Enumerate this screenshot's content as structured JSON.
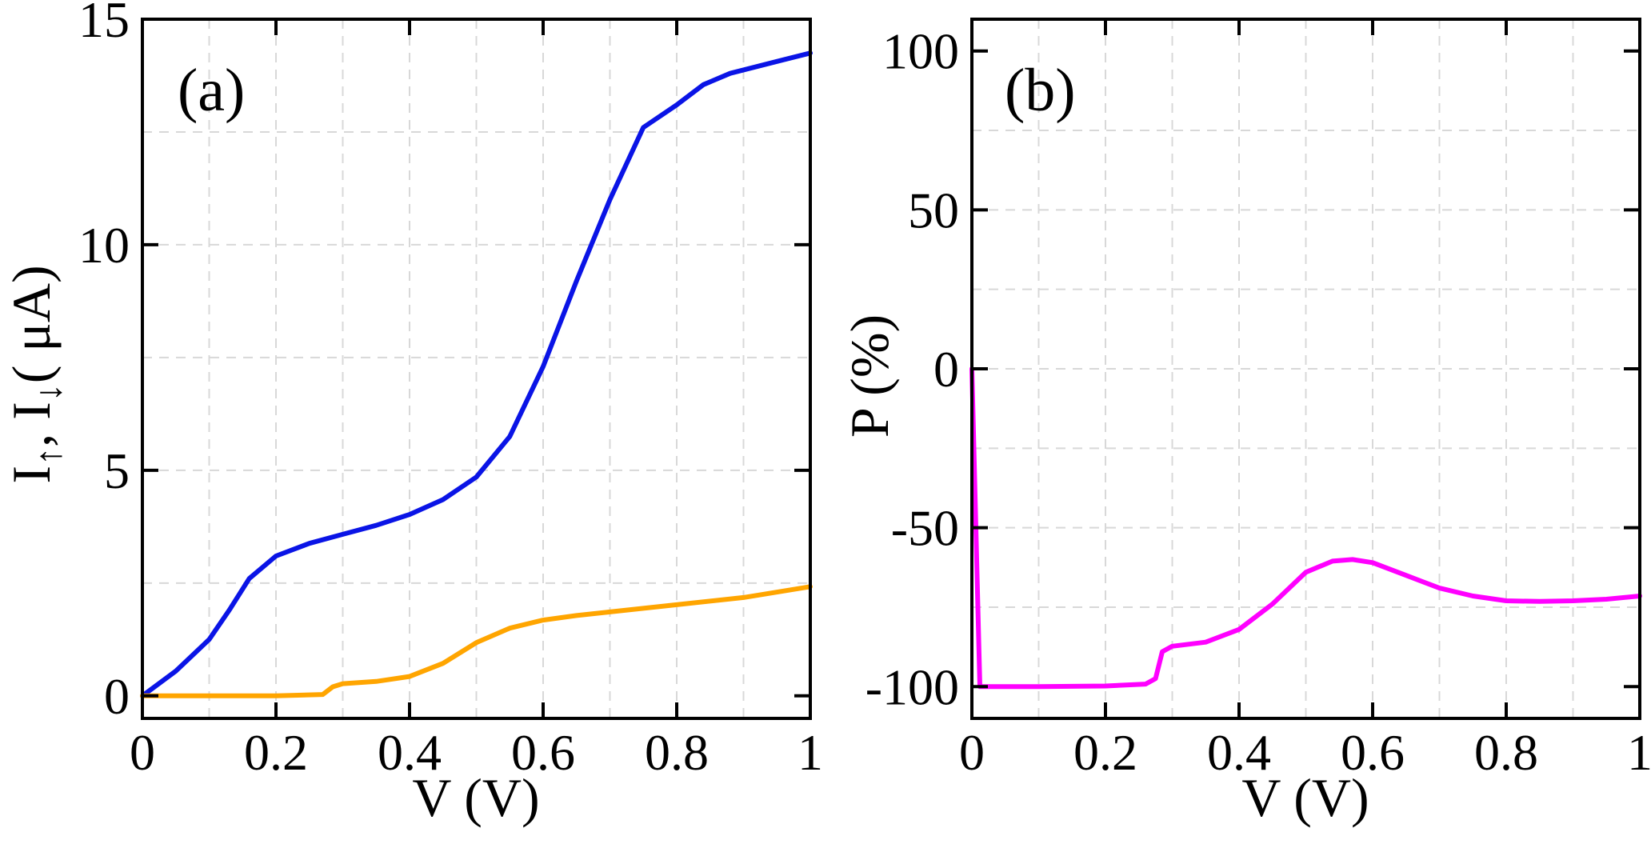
{
  "chart_data": [
    {
      "type": "line",
      "panel_label": "(a)",
      "xlabel": "V (V)",
      "ylabel": {
        "base1": "I",
        "sub1": "↑",
        "sep": ", ",
        "base2": "I",
        "sub2": "↓",
        "unit": "( μA)"
      },
      "xlim": [
        0,
        1
      ],
      "ylim": [
        -0.5,
        15
      ],
      "xticks": [
        0,
        0.2,
        0.4,
        0.6,
        0.8,
        1
      ],
      "xtick_labels": [
        "0",
        "0.2",
        "0.4",
        "0.6",
        "0.8",
        "1"
      ],
      "yticks": [
        0,
        5,
        10,
        15
      ],
      "ytick_labels": [
        "0",
        "5",
        "10",
        "15"
      ],
      "grid_x": [
        0.1,
        0.2,
        0.3,
        0.4,
        0.5,
        0.6,
        0.7,
        0.8,
        0.9
      ],
      "grid_y": [
        2.5,
        5,
        7.5,
        10,
        12.5
      ],
      "series": [
        {
          "name": "I_up",
          "color": "#0a14e6",
          "x": [
            0,
            0.05,
            0.1,
            0.13,
            0.16,
            0.2,
            0.25,
            0.3,
            0.35,
            0.4,
            0.45,
            0.5,
            0.55,
            0.6,
            0.65,
            0.7,
            0.75,
            0.8,
            0.84,
            0.88,
            0.92,
            0.96,
            1.0
          ],
          "y": [
            0,
            0.55,
            1.25,
            1.9,
            2.6,
            3.1,
            3.38,
            3.58,
            3.78,
            4.02,
            4.35,
            4.85,
            5.75,
            7.3,
            9.2,
            11.0,
            12.6,
            13.1,
            13.55,
            13.8,
            13.95,
            14.1,
            14.25
          ]
        },
        {
          "name": "I_down",
          "color": "#ffa500",
          "x": [
            0,
            0.1,
            0.2,
            0.27,
            0.285,
            0.3,
            0.35,
            0.4,
            0.45,
            0.5,
            0.55,
            0.6,
            0.65,
            0.7,
            0.8,
            0.9,
            1.0
          ],
          "y": [
            0,
            0,
            0,
            0.03,
            0.2,
            0.27,
            0.32,
            0.43,
            0.72,
            1.18,
            1.5,
            1.68,
            1.78,
            1.86,
            2.02,
            2.18,
            2.42
          ]
        }
      ]
    },
    {
      "type": "line",
      "panel_label": "(b)",
      "xlabel": "V (V)",
      "ylabel": "P (%)",
      "xlim": [
        0,
        1
      ],
      "ylim": [
        -110,
        110
      ],
      "xticks": [
        0,
        0.2,
        0.4,
        0.6,
        0.8,
        1
      ],
      "xtick_labels": [
        "0",
        "0.2",
        "0.4",
        "0.6",
        "0.8",
        "1"
      ],
      "yticks": [
        -100,
        -50,
        0,
        50,
        100
      ],
      "ytick_labels": [
        "-100",
        "-50",
        "0",
        "50",
        "100"
      ],
      "grid_x": [
        0.1,
        0.2,
        0.3,
        0.4,
        0.5,
        0.6,
        0.7,
        0.8,
        0.9
      ],
      "grid_y": [
        -75,
        -50,
        -25,
        0,
        25,
        50,
        75
      ],
      "series": [
        {
          "name": "P",
          "color": "#ff00ff",
          "x": [
            0,
            0.012,
            0.05,
            0.1,
            0.2,
            0.26,
            0.275,
            0.285,
            0.3,
            0.35,
            0.4,
            0.45,
            0.5,
            0.54,
            0.57,
            0.6,
            0.65,
            0.7,
            0.75,
            0.8,
            0.85,
            0.9,
            0.95,
            1.0
          ],
          "y": [
            0,
            -100,
            -100,
            -100,
            -99.8,
            -99.2,
            -97.5,
            -89,
            -87.3,
            -86,
            -82,
            -74,
            -64,
            -60.5,
            -60,
            -61,
            -65,
            -69,
            -71.5,
            -73,
            -73.2,
            -73,
            -72.5,
            -71.5
          ]
        }
      ]
    }
  ]
}
